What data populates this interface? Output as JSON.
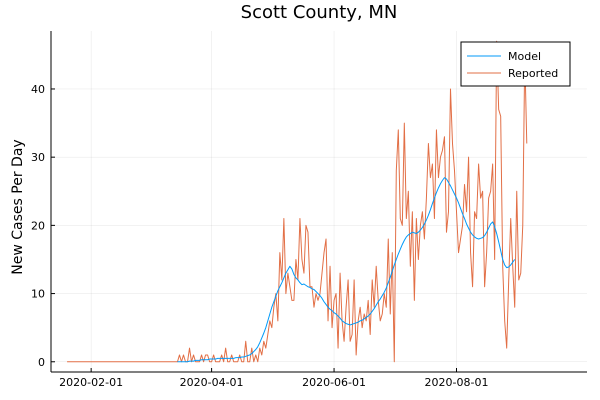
{
  "chart_data": {
    "type": "line",
    "title": "Scott County, MN",
    "xlabel": "",
    "ylabel": "New Cases Per Day",
    "x_start": "2020-01-20",
    "x_end": "2020-09-30",
    "xlim": [
      "2020-01-12",
      "2020-10-05"
    ],
    "ylim": [
      -1.5,
      48.5
    ],
    "x_ticks": [
      "2020-02-01",
      "2020-04-01",
      "2020-06-01",
      "2020-08-01"
    ],
    "y_ticks": [
      0,
      10,
      20,
      30,
      40
    ],
    "grid": true,
    "legend_position": "top-right",
    "series": [
      {
        "name": "Model",
        "color": "#009af9",
        "start": "2020-03-15",
        "values": [
          0,
          0,
          0,
          0,
          0,
          0,
          0.1,
          0.1,
          0.1,
          0.2,
          0.2,
          0.2,
          0.3,
          0.3,
          0.3,
          0.3,
          0.4,
          0.4,
          0.4,
          0.4,
          0.5,
          0.5,
          0.5,
          0.5,
          0.5,
          0.5,
          0.5,
          0.5,
          0.5,
          0.6,
          0.6,
          0.6,
          0.7,
          0.7,
          0.8,
          0.9,
          1,
          1.2,
          1.5,
          1.8,
          2.2,
          2.8,
          3.5,
          4.2,
          5,
          6,
          7,
          8,
          8.8,
          9.6,
          10.4,
          11,
          11.6,
          12.3,
          13,
          13.5,
          14,
          13.6,
          12.8,
          12.3,
          12,
          11.6,
          11.3,
          11.4,
          11.2,
          11,
          10.9,
          10.7,
          10.6,
          10.3,
          10,
          9.7,
          9.3,
          8.8,
          8.4,
          8,
          7.7,
          7.5,
          7.2,
          7,
          6.7,
          6.4,
          6,
          5.8,
          5.6,
          5.5,
          5.4,
          5.5,
          5.6,
          5.7,
          5.8,
          6,
          6.1,
          6.3,
          6.5,
          6.7,
          7,
          7.4,
          7.8,
          8.3,
          8.8,
          9.2,
          9.7,
          10.2,
          10.8,
          11.6,
          12.4,
          13.3,
          14.2,
          15,
          15.8,
          16.5,
          17.2,
          17.8,
          18.3,
          18.6,
          18.8,
          19,
          18.9,
          18.8,
          19,
          19.3,
          19.7,
          20.2,
          20.8,
          21.5,
          22.3,
          23.2,
          24,
          24.8,
          25.5,
          26.1,
          26.6,
          27,
          26.8,
          26.3,
          25.8,
          25.2,
          24.6,
          24,
          23.3,
          22.5,
          21.7,
          21,
          20.2,
          19.6,
          19,
          18.6,
          18.3,
          18.1,
          18,
          18.1,
          18.2,
          18.5,
          19,
          19.6,
          20.2,
          20.5,
          19.8,
          18.8,
          17.6,
          16.3,
          15,
          14.2,
          13.8,
          13.9,
          14.2,
          14.6,
          15
        ]
      },
      {
        "name": "Reported",
        "color": "#e26f46",
        "start": "2020-01-20",
        "values": [
          0,
          0,
          0,
          0,
          0,
          0,
          0,
          0,
          0,
          0,
          0,
          0,
          0,
          0,
          0,
          0,
          0,
          0,
          0,
          0,
          0,
          0,
          0,
          0,
          0,
          0,
          0,
          0,
          0,
          0,
          0,
          0,
          0,
          0,
          0,
          0,
          0,
          0,
          0,
          0,
          0,
          0,
          0,
          0,
          0,
          0,
          0,
          0,
          0,
          0,
          0,
          0,
          0,
          0,
          0,
          0,
          1,
          0,
          1,
          0,
          0,
          2,
          0,
          1,
          0,
          0,
          0,
          1,
          0,
          1,
          1,
          0,
          0,
          1,
          0,
          0,
          0,
          1,
          0,
          2,
          0,
          0,
          1,
          0,
          0,
          0,
          1,
          0,
          0,
          3,
          0,
          0,
          2,
          0,
          1,
          0,
          2,
          1,
          3,
          2,
          4,
          6,
          5,
          8,
          10,
          6,
          16,
          12,
          21,
          10,
          13,
          11,
          9,
          9,
          15,
          12,
          21,
          15,
          13,
          20,
          19,
          11,
          11,
          8,
          10,
          9,
          10,
          13,
          16,
          18,
          6,
          14,
          5,
          9,
          10,
          2,
          13,
          6,
          3,
          8,
          12,
          3,
          4,
          12,
          1,
          6,
          8,
          5,
          7,
          6,
          9,
          4,
          12,
          8,
          14,
          9,
          6,
          7,
          10,
          8,
          18,
          7,
          16,
          0,
          28,
          34,
          21,
          20,
          35,
          21,
          25,
          14,
          22,
          9,
          21,
          15,
          20,
          22,
          18,
          24,
          32,
          27,
          29,
          21,
          34,
          27,
          30,
          31,
          33,
          19,
          22,
          40,
          32,
          28,
          22,
          16,
          18,
          20,
          26,
          22,
          30,
          16,
          11,
          22,
          21,
          29,
          24,
          25,
          11,
          16,
          24,
          25,
          29,
          15,
          47,
          37,
          36,
          14,
          6,
          2,
          12,
          21,
          14,
          8,
          25,
          12,
          13,
          20,
          45,
          32
        ]
      }
    ]
  }
}
